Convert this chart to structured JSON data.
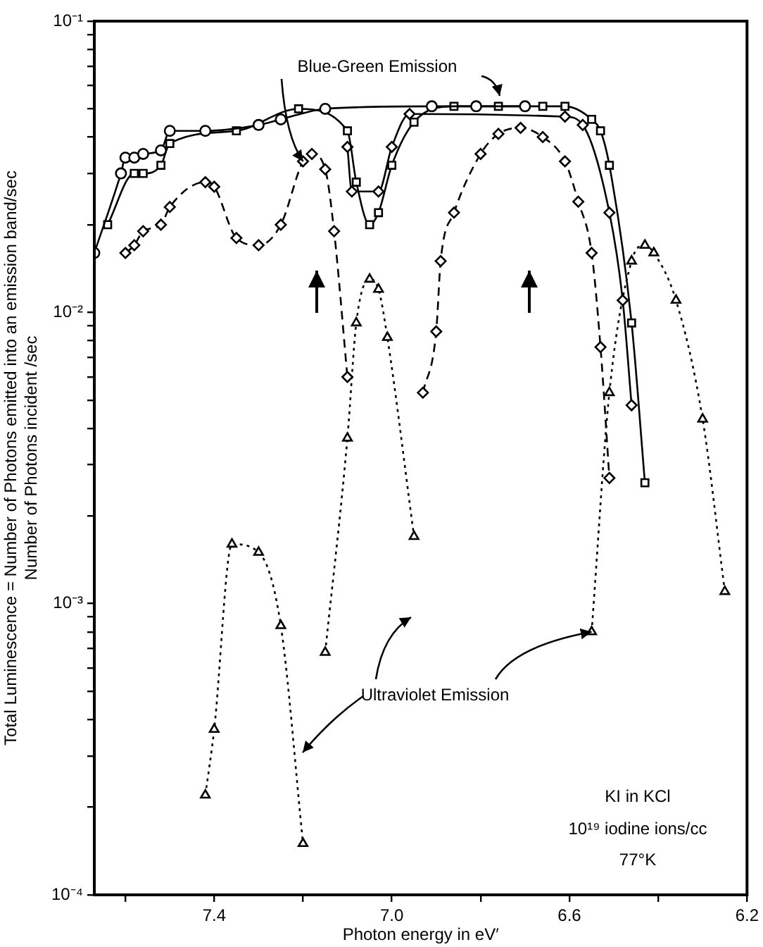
{
  "chart_data": {
    "type": "line",
    "xlabel": "Photon energy in eV′",
    "ylabel": "Total Luminescence = Number of Photons emitted into an emission band/sec\nNumber of Photons incident /sec",
    "log": "y",
    "xlim": [
      7.67,
      6.2
    ],
    "ylim": [
      0.0001,
      0.1
    ],
    "xticks": [
      {
        "value": 7.6,
        "label": null
      },
      7.4,
      {
        "value": 7.2,
        "label": null
      },
      {
        "value": 7,
        "label": "7.0"
      },
      {
        "value": 6.8,
        "label": null
      },
      6.6,
      {
        "value": 6.4,
        "label": null
      },
      6.2
    ],
    "yticks": [
      {
        "value": 0.0001,
        "label": "10⁻⁴"
      },
      {
        "value": 0.0002,
        "label": null
      },
      {
        "value": 0.0003,
        "label": null
      },
      {
        "value": 0.0004,
        "label": null
      },
      {
        "value": 0.0005,
        "label": null
      },
      {
        "value": 0.0006,
        "label": null
      },
      {
        "value": 0.0007,
        "label": null
      },
      {
        "value": 0.0008,
        "label": null
      },
      {
        "value": 0.0009,
        "label": null
      },
      {
        "value": 0.001,
        "label": "10⁻³"
      },
      {
        "value": 0.002,
        "label": null
      },
      {
        "value": 0.003,
        "label": null
      },
      {
        "value": 0.004,
        "label": null
      },
      {
        "value": 0.005,
        "label": null
      },
      {
        "value": 0.006,
        "label": null
      },
      {
        "value": 0.007,
        "label": null
      },
      {
        "value": 0.008,
        "label": null
      },
      {
        "value": 0.009,
        "label": null
      },
      {
        "value": 0.01,
        "label": "10⁻²"
      },
      {
        "value": 0.02,
        "label": null
      },
      {
        "value": 0.03,
        "label": null
      },
      {
        "value": 0.04,
        "label": null
      },
      {
        "value": 0.05,
        "label": null
      },
      {
        "value": 0.06,
        "label": null
      },
      {
        "value": 0.07,
        "label": null
      },
      {
        "value": 0.08,
        "label": null
      },
      {
        "value": 0.09,
        "label": null
      },
      {
        "value": 0.1,
        "label": "10⁻¹"
      }
    ],
    "series": [
      {
        "color": "#000000",
        "marker": "circle",
        "line_style": "solid",
        "x": [
          7.67,
          7.61,
          7.6,
          7.58,
          7.56,
          7.52,
          7.5,
          7.42,
          7.3,
          7.25,
          7.15,
          6.91,
          6.81,
          6.7
        ],
        "values": [
          0.016,
          0.03,
          0.034,
          0.034,
          0.035,
          0.036,
          0.042,
          0.042,
          0.044,
          0.046,
          0.05,
          0.051,
          0.051,
          0.051
        ]
      },
      {
        "color": "#000000",
        "marker": "square",
        "line_style": "solid",
        "x": [
          7.64,
          7.58,
          7.56,
          7.52,
          7.5,
          7.35,
          7.21,
          7.1,
          7.08,
          7.05,
          7.03,
          7.0,
          6.95,
          6.86,
          6.76,
          6.66,
          6.61,
          6.55,
          6.53,
          6.51,
          6.46,
          6.43
        ],
        "values": [
          0.02,
          0.03,
          0.03,
          0.032,
          0.038,
          0.042,
          0.05,
          0.042,
          0.028,
          0.02,
          0.022,
          0.032,
          0.045,
          0.051,
          0.051,
          0.051,
          0.051,
          0.046,
          0.042,
          0.032,
          0.0092,
          0.0026
        ]
      },
      {
        "color": "#000000",
        "marker": "diamond",
        "line_style": "solid",
        "x": [
          7.1,
          7.09,
          7.03,
          7.0,
          6.96,
          6.61,
          6.57,
          6.51,
          6.48,
          6.46
        ],
        "values": [
          0.037,
          0.026,
          0.026,
          0.037,
          0.048,
          0.047,
          0.044,
          0.022,
          0.011,
          0.0048
        ]
      },
      {
        "color": "#000000",
        "marker": "diamond",
        "line_style": "dashed",
        "x": [
          7.6,
          7.58,
          7.56,
          7.52,
          7.5,
          7.42,
          7.4,
          7.35,
          7.3,
          7.25,
          7.2,
          7.18,
          7.15,
          7.13,
          7.1,
          7.0,
          6.93,
          6.9,
          6.89,
          6.86,
          6.8,
          6.76,
          6.71,
          6.66,
          6.61,
          6.58,
          6.55,
          6.53,
          6.51
        ],
        "values": [
          0.016,
          0.017,
          0.019,
          0.02,
          0.023,
          0.028,
          0.027,
          0.018,
          0.017,
          0.02,
          0.033,
          0.035,
          0.031,
          0.019,
          0.006,
          null,
          0.0053,
          0.0086,
          0.015,
          0.022,
          0.035,
          0.041,
          0.043,
          0.04,
          0.033,
          0.024,
          0.016,
          0.0076,
          0.0027
        ]
      },
      {
        "color": "#000000",
        "marker": "triangle",
        "line_style": "dotted",
        "x": [
          7.42,
          7.4,
          7.36,
          7.3,
          7.25,
          7.2,
          7.17,
          7.15,
          7.1,
          7.08,
          7.05,
          7.03,
          7.01,
          6.95,
          6.7,
          6.55,
          6.51,
          6.46,
          6.43,
          6.41,
          6.36,
          6.3,
          6.25
        ],
        "values": [
          0.00022,
          0.00037,
          0.0016,
          0.0015,
          0.00084,
          0.00015,
          null,
          0.00068,
          0.0037,
          0.0092,
          0.013,
          0.012,
          0.0082,
          0.0017,
          null,
          0.0008,
          0.0053,
          0.015,
          0.017,
          0.016,
          0.011,
          0.0043,
          0.0011
        ]
      }
    ],
    "annotations": [
      {
        "text": "Blue-Green Emission",
        "x": 7.2,
        "y": 0.033
      },
      {
        "text": "Ultraviolet Emission",
        "x": 6.55,
        "y": 0.0008
      },
      "KI in KCl",
      "10¹⁹ iodine ions/cc",
      "77°K"
    ]
  }
}
